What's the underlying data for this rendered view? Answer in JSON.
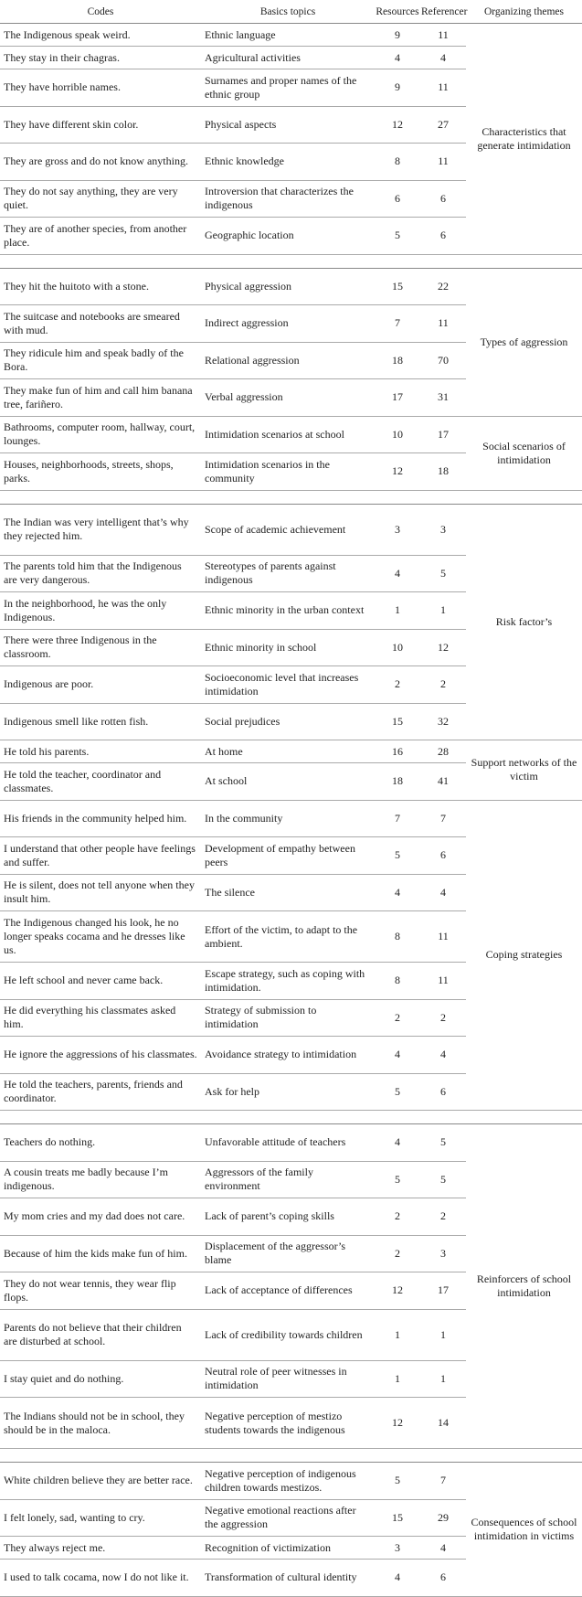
{
  "table": {
    "header": [
      "Codes",
      "Basics topics",
      "Resources",
      "Referencer",
      "Organizing themes"
    ],
    "groups": [
      {
        "theme": "Characteristics that generate intimidation",
        "rows": [
          [
            "The Indigenous speak weird.",
            "Ethnic language",
            9,
            11
          ],
          [
            "They stay in their chagras.",
            "Agricultural activities",
            4,
            4
          ],
          [
            "They have horrible names.",
            "Surnames and proper names of the ethnic group",
            9,
            11
          ],
          [
            "They have different skin color.",
            "Physical aspects",
            12,
            27
          ],
          [
            "They are gross and do not know anything.",
            "Ethnic knowledge",
            8,
            11
          ],
          [
            "They do not say anything, they are very quiet.",
            "Introversion that characterizes the indigenous",
            6,
            6
          ],
          [
            "They are of another species, from another place.",
            "Geographic location",
            5,
            6
          ]
        ]
      },
      {
        "theme": "Types of aggression",
        "rows": [
          [
            "They hit the huitoto with a stone.",
            "Physical aggression",
            15,
            22
          ],
          [
            "The suitcase and notebooks are smeared with mud.",
            "Indirect aggression",
            7,
            11
          ],
          [
            "They ridicule him and speak badly of the Bora.",
            "Relational aggression",
            18,
            70
          ],
          [
            "They make fun of him and call him banana tree, fariñero.",
            "Verbal aggression",
            17,
            31
          ]
        ]
      },
      {
        "theme": "Social scenarios of intimidation",
        "rows": [
          [
            "Bathrooms, computer room, hallway, court, lounges.",
            "Intimidation scenarios at school",
            10,
            17
          ],
          [
            "Houses, neighborhoods, streets, shops, parks.",
            "Intimidation scenarios in the community",
            12,
            18
          ]
        ]
      },
      {
        "theme": "Risk factor’s",
        "rows": [
          [
            "The Indian was very intelligent that’s why they rejected him.",
            "Scope of academic achievement",
            3,
            3
          ],
          [
            "The parents told him that the Indigenous are very dangerous.",
            "Stereotypes of parents against indigenous",
            4,
            5
          ],
          [
            "In the neighborhood, he was the only Indigenous.",
            "Ethnic minority in the urban context",
            1,
            1
          ],
          [
            "There were three Indigenous in the classroom.",
            "Ethnic minority in school",
            10,
            12
          ],
          [
            "Indigenous are poor.",
            "Socioeconomic level that increases intimidation",
            2,
            2
          ],
          [
            "Indigenous smell like rotten fish.",
            "Social prejudices",
            15,
            32
          ]
        ]
      },
      {
        "theme": "Support networks of the victim",
        "rows": [
          [
            "He told his parents.",
            "At home",
            16,
            28
          ],
          [
            "He told the teacher, coordinator and classmates.",
            "At school",
            18,
            41
          ]
        ]
      },
      {
        "theme": "Coping strategies",
        "rows": [
          [
            "His friends in the community helped him.",
            "In the community",
            7,
            7
          ],
          [
            "I understand that other people have feelings and suffer.",
            "Development of empathy between peers",
            5,
            6
          ],
          [
            "He is silent, does not tell anyone when they insult him.",
            "The silence",
            4,
            4
          ],
          [
            "The Indigenous changed his look, he no longer speaks cocama and he dresses like us.",
            "Effort of the victim, to adapt to the ambient.",
            8,
            11
          ],
          [
            "He left school and never came back.",
            "Escape strategy, such as coping with intimidation.",
            8,
            11
          ],
          [
            "He did everything his classmates asked him.",
            "Strategy of submission to intimidation",
            2,
            2
          ],
          [
            "He ignore the aggressions of his classmates.",
            "Avoidance strategy to intimidation",
            4,
            4
          ],
          [
            "He told the teachers, parents, friends and coordinator.",
            "Ask for help",
            5,
            6
          ]
        ]
      },
      {
        "theme": "Reinforcers of school intimidation",
        "rows": [
          [
            "Teachers do nothing.",
            "Unfavorable attitude of teachers",
            4,
            5
          ],
          [
            "A cousin treats me badly because I’m indigenous.",
            "Aggressors of the family environment",
            5,
            5
          ],
          [
            "My mom cries and my dad does not care.",
            "Lack of parent’s coping skills",
            2,
            2
          ],
          [
            "Because of him the kids make fun of him.",
            "Displacement of the aggressor’s blame",
            2,
            3
          ],
          [
            "They do not wear tennis, they wear flip flops.",
            "Lack of acceptance of differences",
            12,
            17
          ],
          [
            "Parents do not believe that their children are disturbed at school.",
            "Lack of credibility towards children",
            1,
            1
          ],
          [
            "I stay quiet and do nothing.",
            "Neutral role of peer witnesses in intimidation",
            1,
            1
          ],
          [
            "The Indians should not be in school, they should be in the maloca.",
            "Negative perception of mestizo students towards the indigenous",
            12,
            14
          ]
        ]
      },
      {
        "theme": "Consequences of school intimidation in victims",
        "rows": [
          [
            "White children believe they are better race.",
            "Negative perception of indigenous children towards mestizos.",
            5,
            7
          ],
          [
            "I felt lonely, sad, wanting to cry.",
            "Negative emotional reactions after the aggression",
            15,
            29
          ],
          [
            "They always reject me.",
            "Recognition of victimization",
            3,
            4
          ],
          [
            "I used to talk cocama, now I do not like it.",
            "Transformation of cultural identity",
            4,
            6
          ]
        ]
      }
    ]
  }
}
